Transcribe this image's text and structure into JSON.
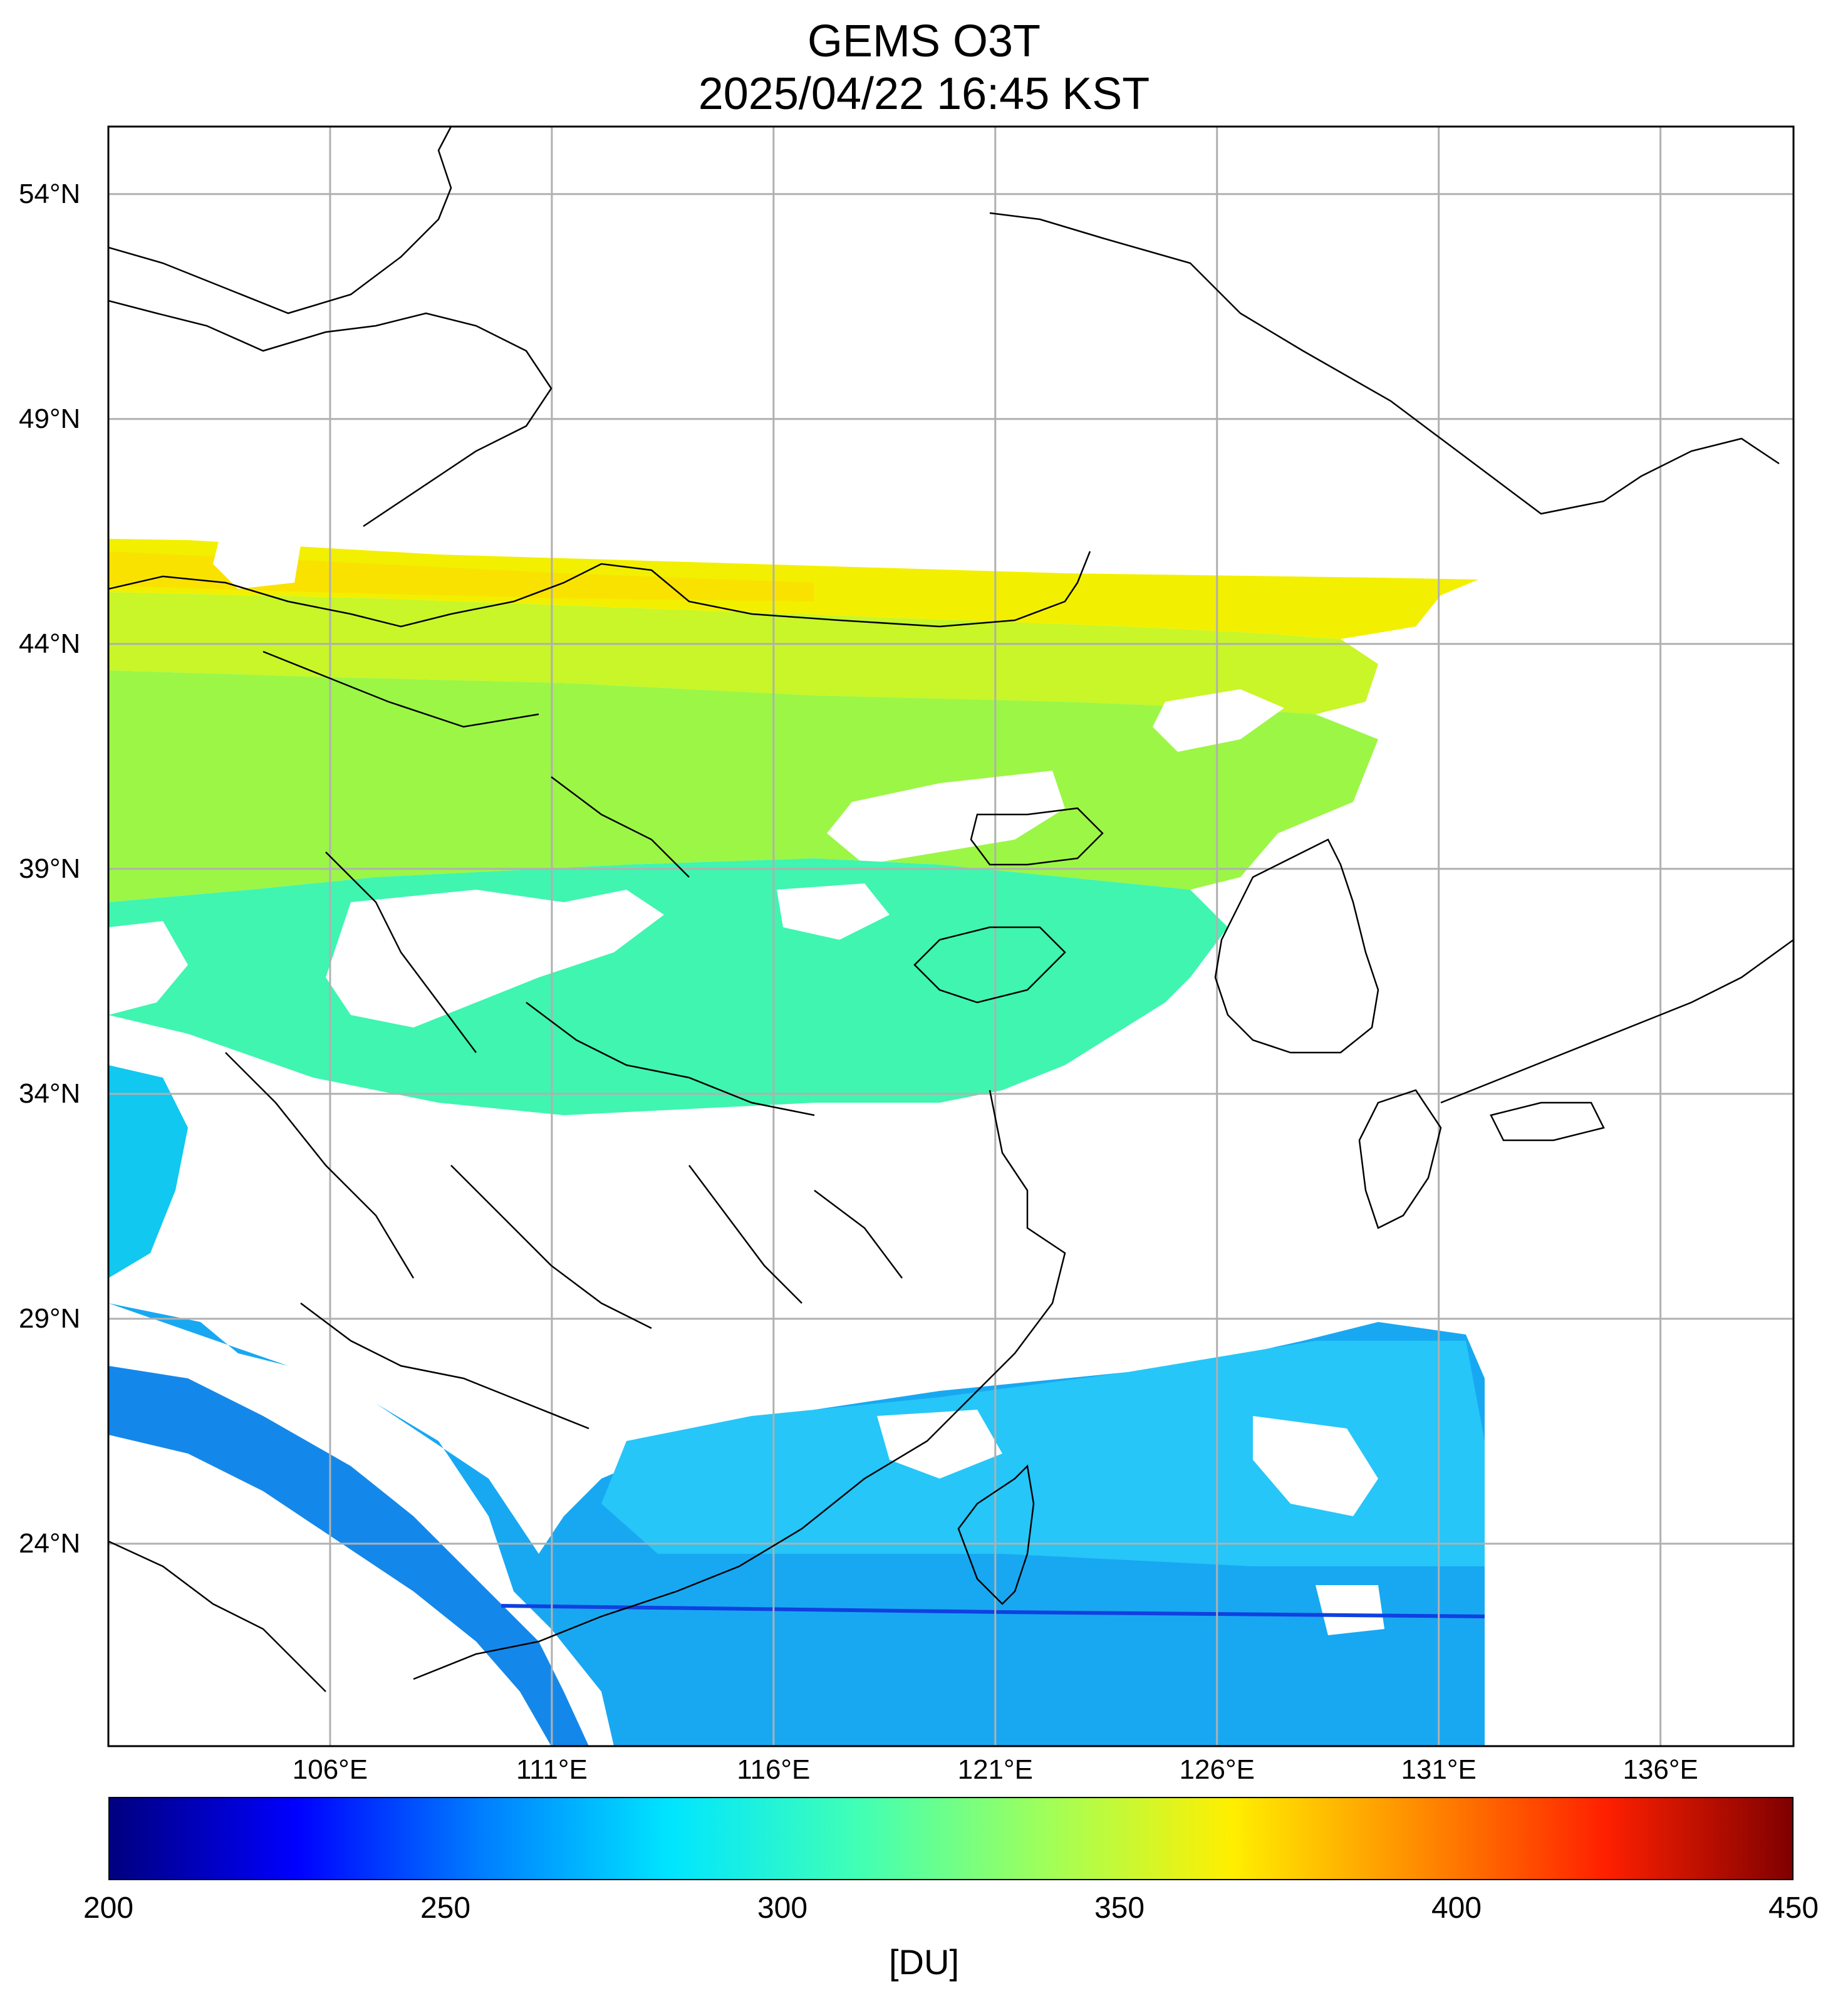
{
  "title": {
    "line1": "GEMS O3T",
    "line2": "2025/04/22 16:45 KST"
  },
  "map": {
    "lat_ticks": [
      {
        "value": 54,
        "label": "54°N"
      },
      {
        "value": 49,
        "label": "49°N"
      },
      {
        "value": 44,
        "label": "44°N"
      },
      {
        "value": 39,
        "label": "39°N"
      },
      {
        "value": 34,
        "label": "34°N"
      },
      {
        "value": 29,
        "label": "29°N"
      },
      {
        "value": 24,
        "label": "24°N"
      }
    ],
    "lon_ticks": [
      {
        "value": 106,
        "label": "106°E"
      },
      {
        "value": 111,
        "label": "111°E"
      },
      {
        "value": 116,
        "label": "116°E"
      },
      {
        "value": 121,
        "label": "121°E"
      },
      {
        "value": 126,
        "label": "126°E"
      },
      {
        "value": 131,
        "label": "131°E"
      },
      {
        "value": 136,
        "label": "136°E"
      }
    ],
    "extent": {
      "lon_min": 101,
      "lon_max": 139,
      "lat_min": 19.5,
      "lat_max": 55.5
    }
  },
  "colorbar": {
    "min": 200,
    "max": 450,
    "ticks": [
      {
        "value": 200,
        "label": "200"
      },
      {
        "value": 250,
        "label": "250"
      },
      {
        "value": 300,
        "label": "300"
      },
      {
        "value": 350,
        "label": "350"
      },
      {
        "value": 400,
        "label": "400"
      },
      {
        "value": 450,
        "label": "450"
      }
    ],
    "unit": "[DU]",
    "colormap": "jet",
    "stops": [
      "#00007f",
      "#0000ff",
      "#007fff",
      "#00e5ff",
      "#40ffb6",
      "#9fff5a",
      "#ffef00",
      "#ff8c00",
      "#ff2000",
      "#7f0000"
    ]
  }
}
